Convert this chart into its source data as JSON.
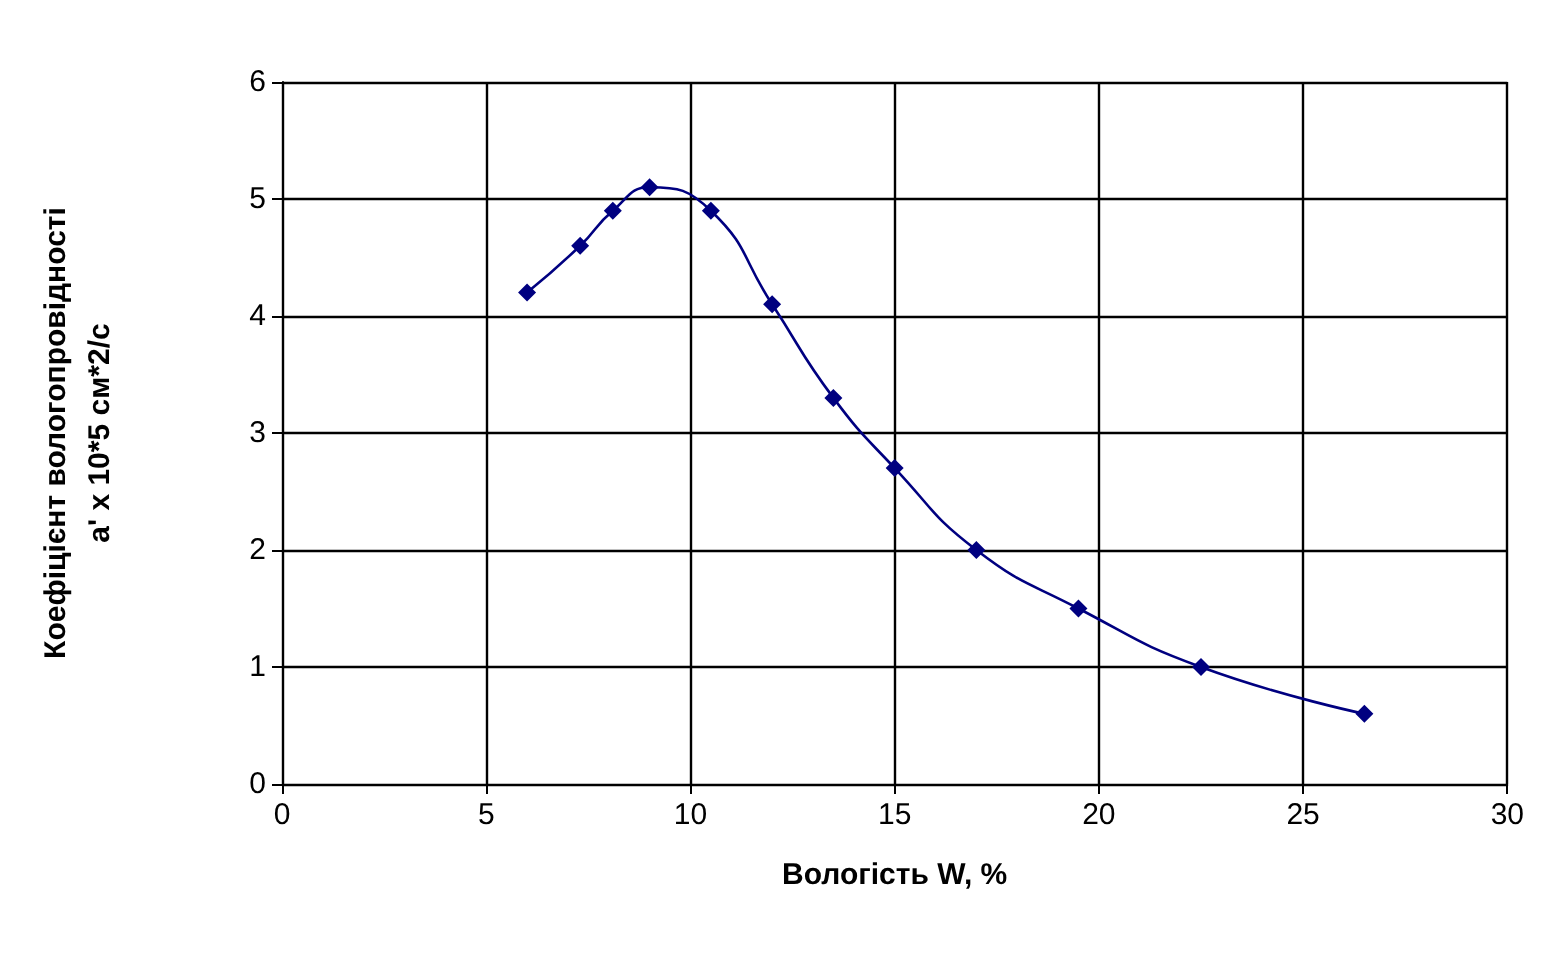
{
  "chart_data": {
    "type": "line",
    "xlabel": "Вологість W, %",
    "ylabel": "Коефіцієнт вологопровідності\na' x 10*5 см*2/с",
    "x": [
      6,
      7.3,
      8.1,
      9,
      10.5,
      12,
      13.5,
      15,
      17,
      19.5,
      22.5,
      26.5
    ],
    "series": [
      {
        "color": "#000080",
        "values": [
          4.2,
          4.6,
          4.9,
          5.1,
          4.9,
          4.1,
          3.3,
          2.7,
          2.0,
          1.5,
          1.0,
          0.6
        ]
      }
    ],
    "xlim": [
      0,
      30
    ],
    "xticks": [
      0,
      5,
      10,
      15,
      20,
      25,
      30
    ],
    "ylim": [
      0,
      6
    ],
    "yticks": [
      0,
      1,
      2,
      3,
      4,
      5,
      6
    ],
    "grid": true,
    "marker": "diamond",
    "line_style": "solid"
  }
}
